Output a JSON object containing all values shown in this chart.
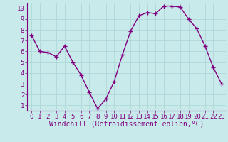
{
  "x": [
    0,
    1,
    2,
    3,
    4,
    5,
    6,
    7,
    8,
    9,
    10,
    11,
    12,
    13,
    14,
    15,
    16,
    17,
    18,
    19,
    20,
    21,
    22,
    23
  ],
  "y": [
    7.5,
    6.0,
    5.9,
    5.5,
    6.5,
    5.0,
    3.8,
    2.2,
    0.7,
    1.6,
    3.2,
    5.7,
    7.9,
    9.3,
    9.6,
    9.5,
    10.2,
    10.2,
    10.1,
    9.0,
    8.1,
    6.5,
    4.5,
    3.0
  ],
  "line_color": "#800080",
  "marker_color": "#800080",
  "bg_color": "#c8eaea",
  "grid_color": "#b0d8d8",
  "xlabel": "Windchill (Refroidissement éolien,°C)",
  "xlim": [
    -0.5,
    23.5
  ],
  "ylim": [
    0.5,
    10.5
  ],
  "yticks": [
    1,
    2,
    3,
    4,
    5,
    6,
    7,
    8,
    9,
    10
  ],
  "xticks": [
    0,
    1,
    2,
    3,
    4,
    5,
    6,
    7,
    8,
    9,
    10,
    11,
    12,
    13,
    14,
    15,
    16,
    17,
    18,
    19,
    20,
    21,
    22,
    23
  ],
  "tick_color": "#800080",
  "font_size": 6.5,
  "xlabel_font_size": 7,
  "marker_size": 2.5,
  "line_width": 1.0
}
